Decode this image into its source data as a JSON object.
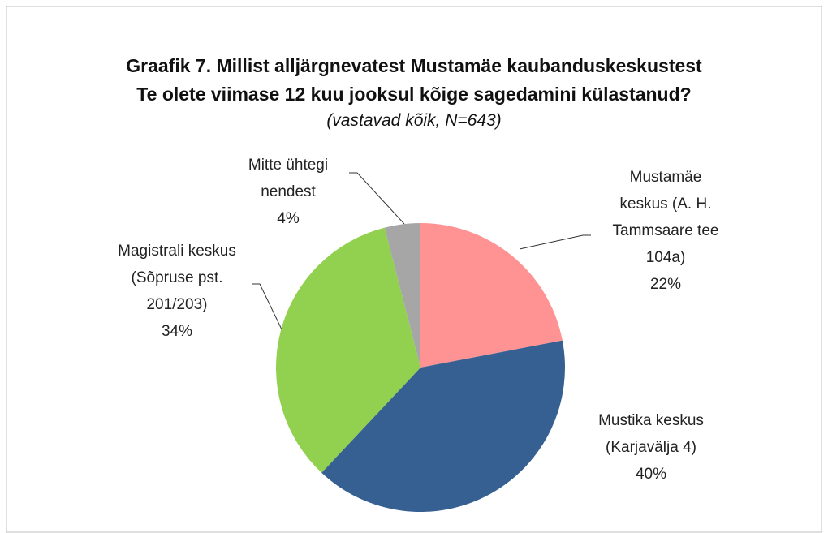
{
  "chart_data": {
    "type": "pie",
    "title": [
      "Graafik 7. Millist alljärgnevatest Mustamäe kaubanduskeskustest",
      "Te olete viimase 12 kuu jooksul kõige sagedamini külastanud?"
    ],
    "subtitle": "(vastavad kõik, N=643)",
    "categories": [
      "Mustamäe keskus (A. H. Tammsaare tee 104a)",
      "Mustika keskus (Karjavälja 4)",
      "Magistrali keskus (Sõpruse pst. 201/203)",
      "Mitte ühtegi nendest"
    ],
    "values": [
      22,
      40,
      34,
      4
    ],
    "value_labels": [
      "22%",
      "40%",
      "34%",
      "4%"
    ],
    "colors": [
      "#ff9393",
      "#376092",
      "#92d050",
      "#a6a6a6"
    ]
  }
}
